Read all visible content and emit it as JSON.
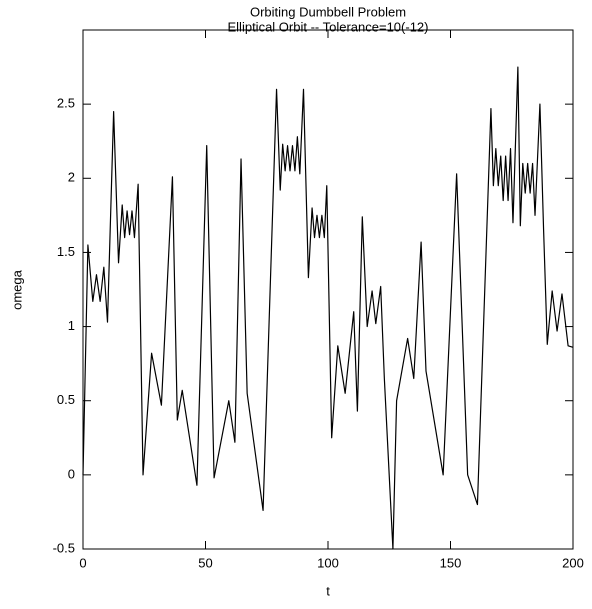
{
  "chart_data": {
    "type": "line",
    "title": "Orbiting Dumbbell Problem",
    "subtitle": "Elliptical Orbit -- Tolerance=10(-12)",
    "x_label": "t",
    "y_label": "omega",
    "xlim": [
      0,
      200
    ],
    "ylim": [
      -0.5,
      3
    ],
    "xticks": [
      0,
      50,
      100,
      150,
      200
    ],
    "yticks": [
      -0.5,
      0,
      0.5,
      1,
      1.5,
      2,
      2.5
    ],
    "series": [
      {
        "color": "#000000",
        "x": [
          0,
          2,
          4,
          5.5,
          7,
          8.5,
          10,
          12.5,
          14.5,
          16,
          17,
          18,
          19,
          20,
          21,
          22.5,
          24.5,
          28,
          32,
          36.5,
          38.5,
          40.5,
          46.5,
          50.5,
          53.5,
          59.5,
          62,
          64.5,
          67,
          73.5,
          79,
          80.5,
          81.5,
          82.5,
          83.5,
          84.5,
          85.5,
          86.5,
          87.5,
          88.5,
          90,
          92,
          93.5,
          94.5,
          95.5,
          96.5,
          97.5,
          98.5,
          99.5,
          101.5,
          104,
          107,
          110.5,
          112,
          114,
          116,
          118,
          119.5,
          121.5,
          123,
          126.5,
          128,
          132.5,
          135,
          138,
          140,
          147,
          152.5,
          157,
          161,
          166.5,
          167.5,
          168.5,
          169.5,
          170.5,
          171.5,
          172.5,
          173.5,
          174.5,
          175.5,
          177.5,
          178.5,
          179.5,
          180.5,
          181.5,
          182.5,
          183.5,
          184.5,
          186.5,
          188,
          189.5,
          191.5,
          193.5,
          195.5,
          198,
          200
        ],
        "values": [
          0,
          1.55,
          1.17,
          1.35,
          1.17,
          1.4,
          1.03,
          2.45,
          1.43,
          1.82,
          1.6,
          1.78,
          1.62,
          1.78,
          1.6,
          1.96,
          0,
          0.82,
          0.47,
          2.01,
          0.37,
          0.57,
          -0.07,
          2.22,
          -0.02,
          0.5,
          0.22,
          2.13,
          0.55,
          -0.24,
          2.6,
          1.92,
          2.23,
          2.05,
          2.22,
          2.05,
          2.22,
          2.05,
          2.28,
          2.03,
          2.6,
          1.33,
          1.8,
          1.6,
          1.75,
          1.6,
          1.75,
          1.6,
          1.95,
          0.25,
          0.87,
          0.55,
          1.1,
          0.43,
          1.74,
          1,
          1.24,
          1.02,
          1.27,
          0.65,
          -0.5,
          0.5,
          0.92,
          0.65,
          1.57,
          0.7,
          0,
          2.03,
          0,
          -0.2,
          2.47,
          1.95,
          2.2,
          1.95,
          2.15,
          1.85,
          2.15,
          1.85,
          2.2,
          1.7,
          2.75,
          1.68,
          2.1,
          1.9,
          2.1,
          1.9,
          2.1,
          1.75,
          2.5,
          1.65,
          0.88,
          1.24,
          0.97,
          1.22,
          0.87,
          0.86
        ]
      }
    ]
  }
}
